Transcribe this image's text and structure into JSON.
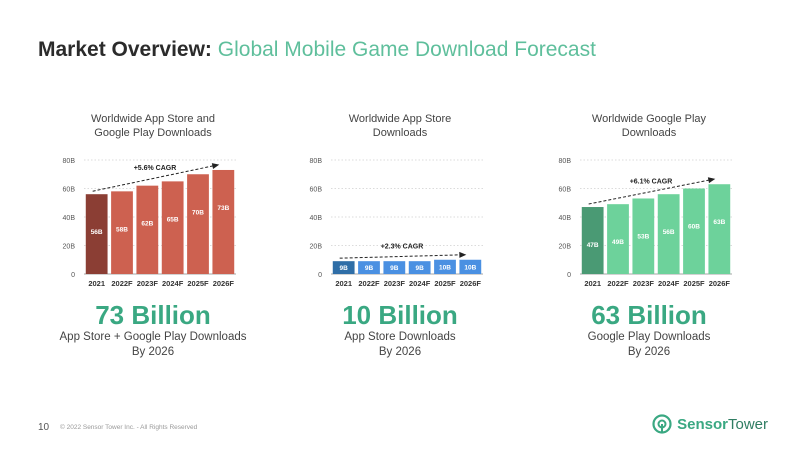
{
  "header": {
    "title_bold": "Market Overview:",
    "title_light": "Global Mobile Game Download Forecast"
  },
  "chart_data": [
    {
      "type": "bar",
      "title_lines": [
        "Worldwide App Store and",
        "Google Play Downloads"
      ],
      "categories": [
        "2021",
        "2022F",
        "2023F",
        "2024F",
        "2025F",
        "2026F"
      ],
      "values": [
        56,
        58,
        62,
        65,
        70,
        73
      ],
      "data_labels": [
        "56B",
        "58B",
        "62B",
        "65B",
        "70B",
        "73B"
      ],
      "yticks": [
        "0",
        "20B",
        "40B",
        "60B",
        "80B"
      ],
      "ylim": [
        0,
        80
      ],
      "cagr_label": "+5.6% CAGR",
      "colors": {
        "first": "#8b3e34",
        "rest": "#cd6150"
      },
      "headline": "73 Billion",
      "headline_color": "#3aa882",
      "subtitle_lines": [
        "App Store + Google Play Downloads",
        "By 2026"
      ]
    },
    {
      "type": "bar",
      "title_lines": [
        "Worldwide App Store",
        "Downloads"
      ],
      "categories": [
        "2021",
        "2022F",
        "2023F",
        "2024F",
        "2025F",
        "2026F"
      ],
      "values": [
        9,
        9,
        9,
        9,
        10,
        10
      ],
      "data_labels": [
        "9B",
        "9B",
        "9B",
        "9B",
        "10B",
        "10B"
      ],
      "yticks": [
        "0",
        "20B",
        "40B",
        "60B",
        "80B"
      ],
      "ylim": [
        0,
        80
      ],
      "cagr_label": "+2.3% CAGR",
      "colors": {
        "first": "#2f6ea7",
        "rest": "#4a90e2"
      },
      "headline": "10 Billion",
      "headline_color": "#3aa882",
      "subtitle_lines": [
        "App Store Downloads",
        "By 2026"
      ]
    },
    {
      "type": "bar",
      "title_lines": [
        "Worldwide Google Play",
        "Downloads"
      ],
      "categories": [
        "2021",
        "2022F",
        "2023F",
        "2024F",
        "2025F",
        "2026F"
      ],
      "values": [
        47,
        49,
        53,
        56,
        60,
        63
      ],
      "data_labels": [
        "47B",
        "49B",
        "53B",
        "56B",
        "60B",
        "63B"
      ],
      "yticks": [
        "0",
        "20B",
        "40B",
        "60B",
        "80B"
      ],
      "ylim": [
        0,
        80
      ],
      "cagr_label": "+6.1% CAGR",
      "colors": {
        "first": "#4a9a74",
        "rest": "#6dd29b"
      },
      "headline": "63 Billion",
      "headline_color": "#3aa882",
      "subtitle_lines": [
        "Google Play Downloads",
        "By 2026"
      ]
    }
  ],
  "footer": {
    "page_number": "10",
    "copyright": "© 2022 Sensor Tower Inc. - All Rights Reserved"
  },
  "logo": {
    "brand_bold": "Sensor",
    "brand_rest": "Tower",
    "icon": "sensor-tower-logo-icon",
    "color": "#3aa882"
  }
}
